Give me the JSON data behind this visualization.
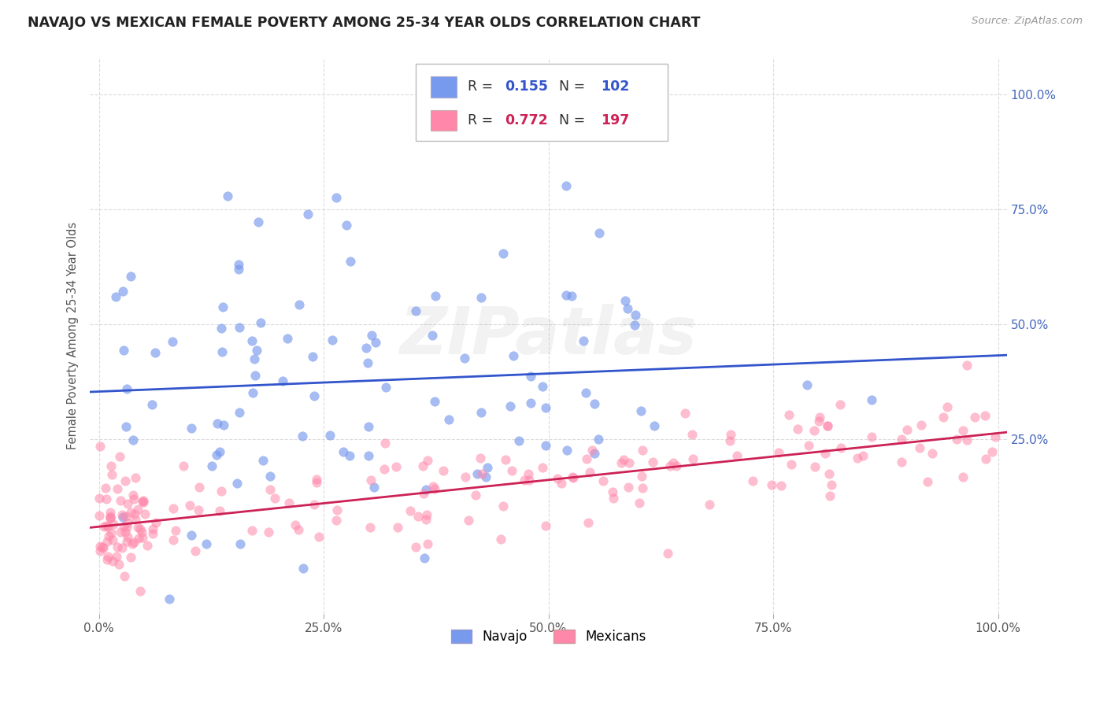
{
  "title": "NAVAJO VS MEXICAN FEMALE POVERTY AMONG 25-34 YEAR OLDS CORRELATION CHART",
  "source": "Source: ZipAtlas.com",
  "ylabel": "Female Poverty Among 25-34 Year Olds",
  "navajo_color": "#7799ee",
  "mexican_color": "#ff88aa",
  "navajo_line_color": "#3355cc",
  "mexican_line_color": "#cc2255",
  "navajo_R": 0.155,
  "navajo_N": 102,
  "mexican_R": 0.772,
  "mexican_N": 197,
  "legend_labels": [
    "Navajo",
    "Mexicans"
  ],
  "background_color": "#ffffff",
  "grid_color": "#cccccc",
  "title_color": "#222222"
}
